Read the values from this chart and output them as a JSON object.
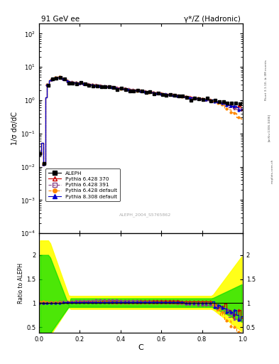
{
  "title_left": "91 GeV ee",
  "title_right": "γ*/Z (Hadronic)",
  "ylabel_main": "1/σ dσ/dC",
  "ylabel_ratio": "Ratio to ALEPH",
  "xlabel": "C",
  "watermark": "ALEPH_2004_S5765862",
  "rivet_text": "Rivet 3.1.10, ≥ 3M events",
  "arxiv_text": "[arXiv:1306.3436]",
  "mcplots_text": "mcplots.cern.ch",
  "ylim_main": [
    0.0001,
    200
  ],
  "ylim_ratio": [
    0.38,
    2.45
  ],
  "yticks_ratio": [
    0.5,
    1.0,
    1.5,
    2.0
  ],
  "legend_entries": [
    "ALEPH",
    "Pythia 6.428 370",
    "Pythia 6.428 391",
    "Pythia 6.428 default",
    "Pythia 8.308 default"
  ],
  "colors": {
    "aleph": "#000000",
    "py6_370": "#cc0000",
    "py6_391": "#884488",
    "py6_def": "#ff8800",
    "py8_def": "#0000cc"
  }
}
